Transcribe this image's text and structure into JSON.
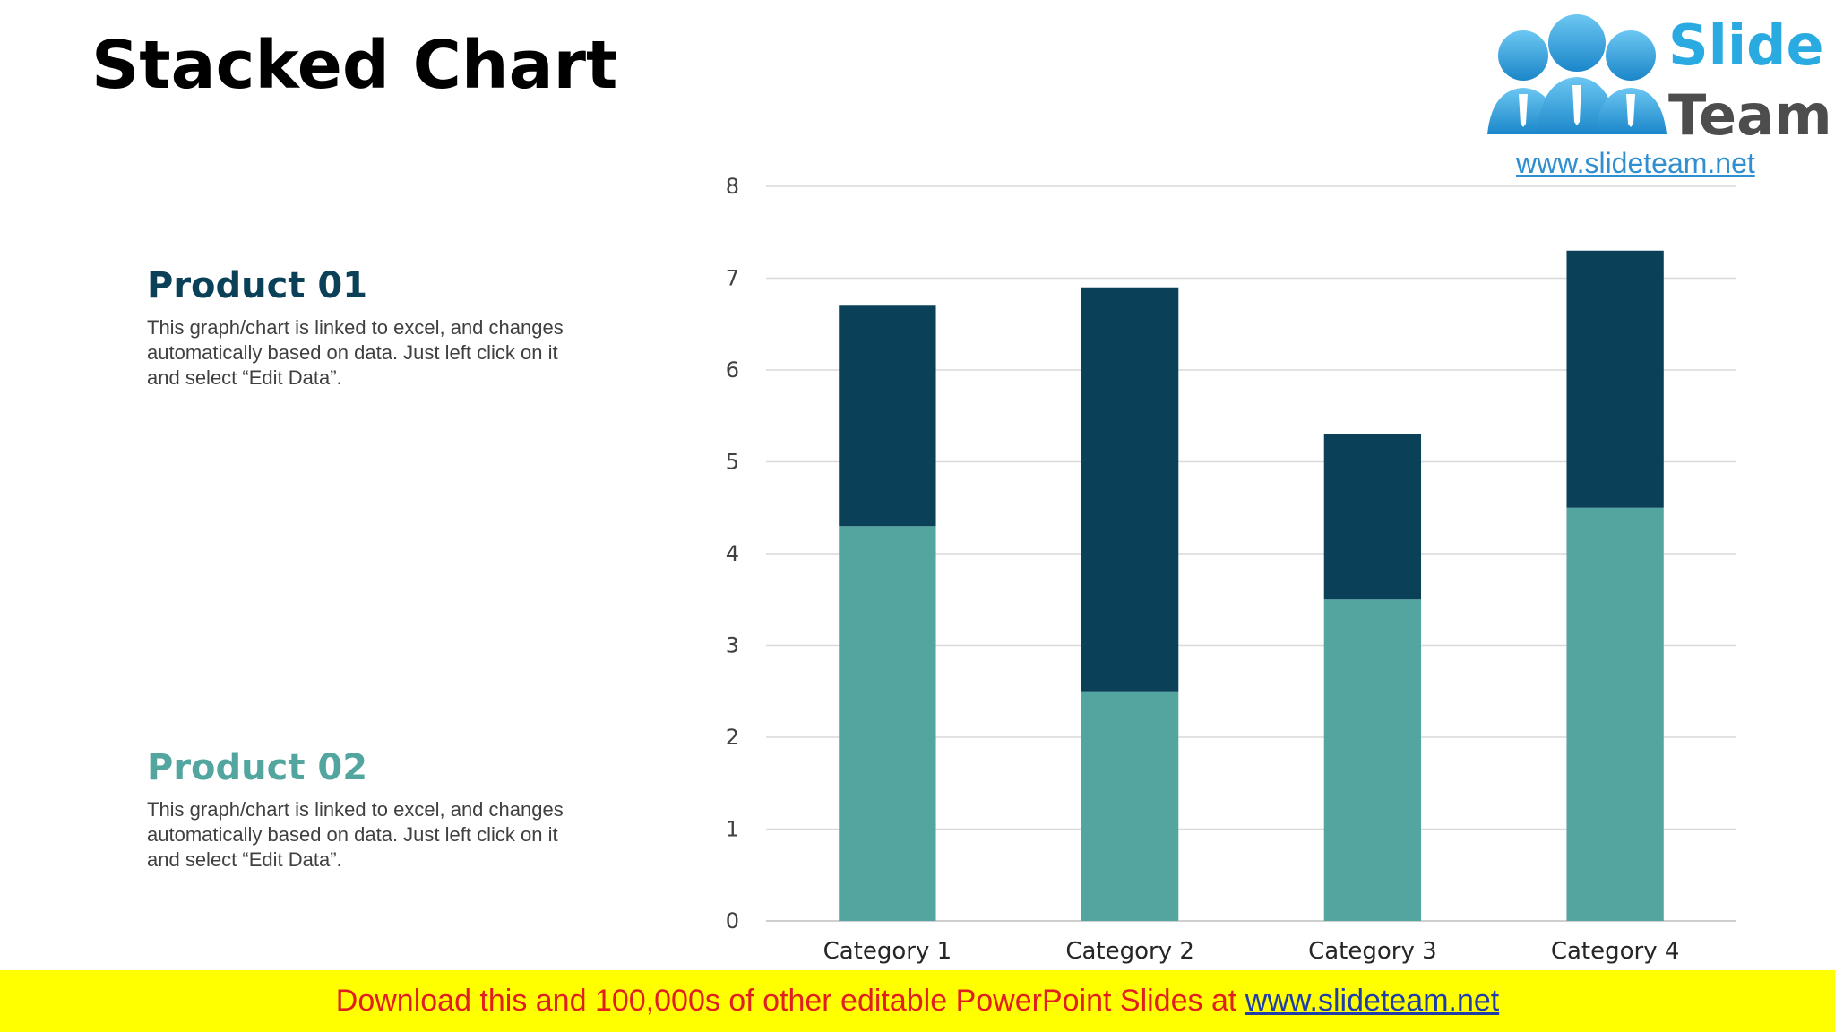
{
  "slide": {
    "title": "Stacked Chart"
  },
  "products": [
    {
      "heading": "Product 01",
      "color": "#0a4058",
      "description": "This graph/chart is linked to excel, and changes automatically based on data. Just left click on it and select “Edit Data”."
    },
    {
      "heading": "Product 02",
      "color": "#53a59f",
      "description": "This graph/chart is linked to excel, and changes automatically based on data. Just left click on it and select “Edit Data”."
    }
  ],
  "logo": {
    "word1": "Slide",
    "word2": "Team",
    "url": "www.slideteam.net"
  },
  "banner": {
    "text": "Download this and 100,000s of other editable PowerPoint Slides at ",
    "link": "www.slideteam.net"
  },
  "chart_data": {
    "type": "bar",
    "stacked": true,
    "categories": [
      "Category 1",
      "Category 2",
      "Category 3",
      "Category 4"
    ],
    "series": [
      {
        "values": [
          4.3,
          2.5,
          3.5,
          4.5
        ],
        "color": "#53a59f"
      },
      {
        "values": [
          2.4,
          4.4,
          1.8,
          2.8
        ],
        "color": "#0a4058"
      }
    ],
    "yticks": [
      0,
      1,
      2,
      3,
      4,
      5,
      6,
      7,
      8
    ],
    "ylim": [
      0,
      8
    ],
    "grid": true,
    "legend": "none"
  }
}
